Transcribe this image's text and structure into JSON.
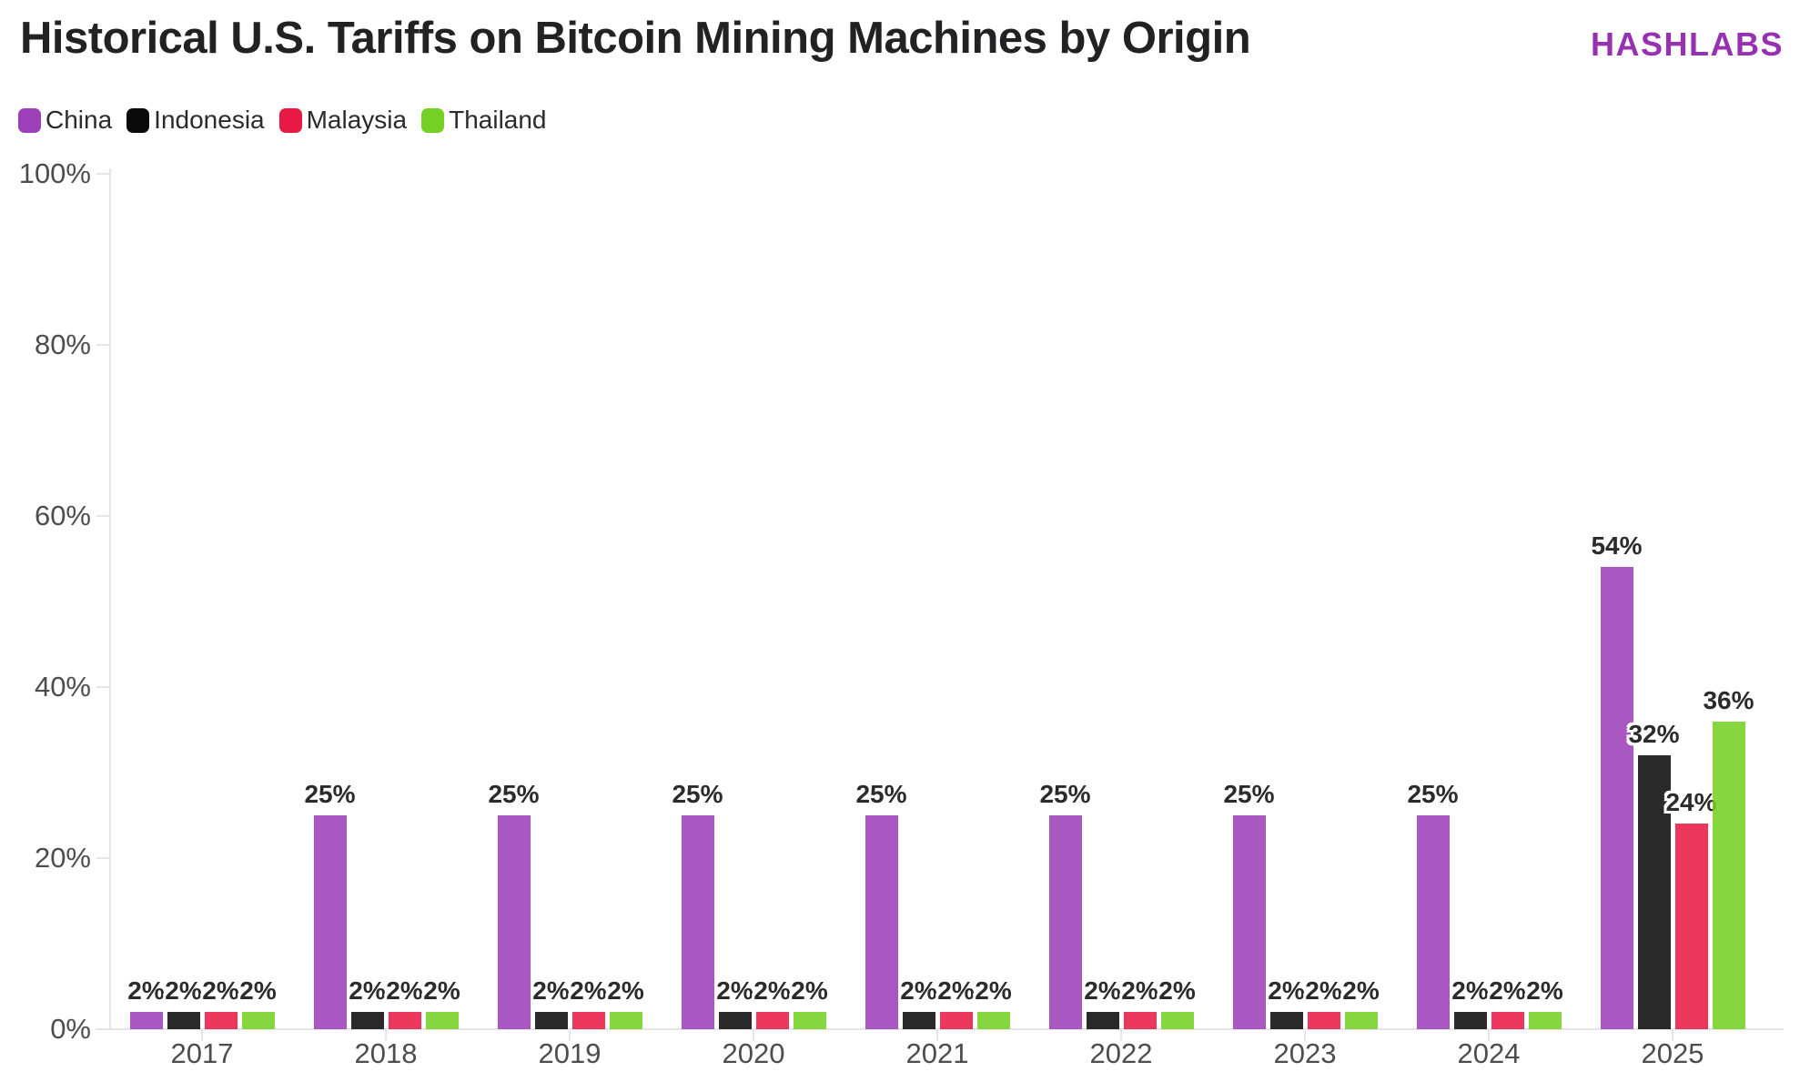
{
  "header": {
    "title": "Historical U.S. Tariffs on Bitcoin Mining Machines by Origin",
    "logo": "HASHLABS",
    "logo_color": "#9632b2"
  },
  "chart_data": {
    "type": "bar",
    "title": "Historical U.S. Tariffs on Bitcoin Mining Machines by Origin",
    "categories": [
      "2017",
      "2018",
      "2019",
      "2020",
      "2021",
      "2022",
      "2023",
      "2024",
      "2025"
    ],
    "series": [
      {
        "name": "China",
        "color": "#9c3fb8",
        "values": [
          2,
          25,
          25,
          25,
          25,
          25,
          25,
          25,
          54
        ]
      },
      {
        "name": "Indonesia",
        "color": "#0a0a0a",
        "values": [
          2,
          2,
          2,
          2,
          2,
          2,
          2,
          2,
          32
        ]
      },
      {
        "name": "Malaysia",
        "color": "#e81944",
        "values": [
          2,
          2,
          2,
          2,
          2,
          2,
          2,
          2,
          24
        ]
      },
      {
        "name": "Thailand",
        "color": "#74d024",
        "values": [
          2,
          2,
          2,
          2,
          2,
          2,
          2,
          2,
          36
        ]
      }
    ],
    "xlabel": "",
    "ylabel": "",
    "ylim": [
      0,
      100
    ],
    "yticks": [
      {
        "value": 0,
        "label": "0%"
      },
      {
        "value": 20,
        "label": "20%"
      },
      {
        "value": 40,
        "label": "40%"
      },
      {
        "value": 60,
        "label": "60%"
      },
      {
        "value": 80,
        "label": "80%"
      },
      {
        "value": 100,
        "label": "100%"
      }
    ],
    "value_label_suffix": "%",
    "grid": false,
    "legend_position": "top-left",
    "axis_color": "#e7e4ea"
  }
}
